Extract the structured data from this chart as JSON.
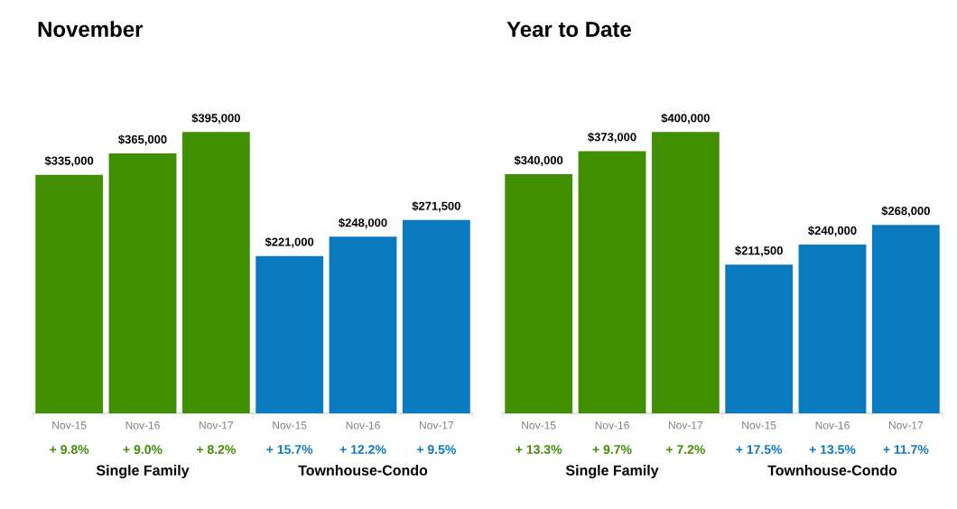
{
  "chart_data": [
    {
      "type": "bar",
      "title": "November",
      "categories": [
        "Nov-15",
        "Nov-16",
        "Nov-17",
        "Nov-15",
        "Nov-16",
        "Nov-17"
      ],
      "values": [
        335000,
        365000,
        395000,
        221000,
        248000,
        271500
      ],
      "colors": [
        "#3f8f00",
        "#3f8f00",
        "#3f8f00",
        "#0a7abf",
        "#0a7abf",
        "#0a7abf"
      ],
      "value_labels": [
        "$335,000",
        "$365,000",
        "$395,000",
        "$221,000",
        "$248,000",
        "$271,500"
      ],
      "tick_labels": "x",
      "annotations": [
        "+ 9.8%",
        "+ 9.0%",
        "+ 8.2%",
        "+ 15.7%",
        "+ 12.2%",
        "+ 9.5%",
        "Single Family",
        "Townhouse-Condo"
      ]
    },
    {
      "type": "bar",
      "title": "Year to Date",
      "categories": [
        "Nov-15",
        "Nov-16",
        "Nov-17",
        "Nov-15",
        "Nov-16",
        "Nov-17"
      ],
      "values": [
        340000,
        373000,
        400000,
        211500,
        240000,
        268000
      ],
      "colors": [
        "#3f8f00",
        "#3f8f00",
        "#3f8f00",
        "#0a7abf",
        "#0a7abf",
        "#0a7abf"
      ],
      "value_labels": [
        "$340,000",
        "$373,000",
        "$400,000",
        "$211,500",
        "$240,000",
        "$268,000"
      ],
      "tick_labels": "x",
      "annotations": [
        "+ 13.3%",
        "+ 9.7%",
        "+ 7.2%",
        "+ 17.5%",
        "+ 13.5%",
        "+ 11.7%",
        "Single Family",
        "Townhouse-Condo"
      ]
    }
  ]
}
